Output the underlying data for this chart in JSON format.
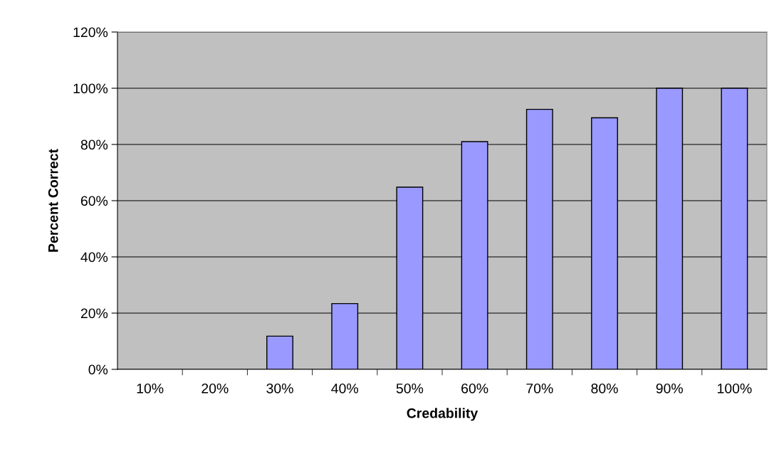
{
  "chart_data": {
    "type": "bar",
    "xlabel": "Credability",
    "ylabel": "Percent Correct",
    "categories": [
      "10%",
      "20%",
      "30%",
      "40%",
      "50%",
      "60%",
      "70%",
      "80%",
      "90%",
      "100%"
    ],
    "values": [
      null,
      null,
      11.8,
      23.4,
      64.8,
      81,
      92.5,
      89.5,
      100,
      100
    ],
    "color": "#9999ff",
    "ylim": [
      0,
      120
    ],
    "yticks": [
      {
        "value": 0,
        "label": "0%"
      },
      {
        "value": 20,
        "label": "20%"
      },
      {
        "value": 40,
        "label": "40%"
      },
      {
        "value": 60,
        "label": "60%"
      },
      {
        "value": 80,
        "label": "80%"
      },
      {
        "value": 100,
        "label": "100%"
      },
      {
        "value": 120,
        "label": "120%"
      }
    ],
    "grid": "y",
    "legend": false
  }
}
